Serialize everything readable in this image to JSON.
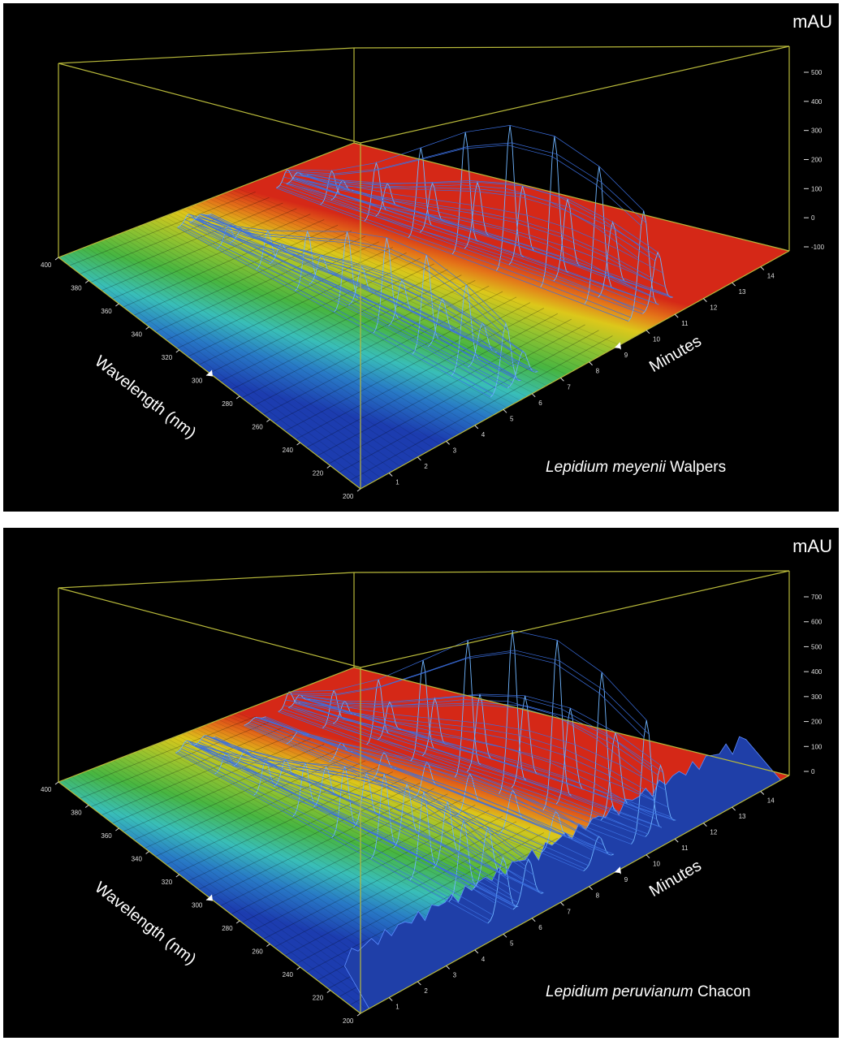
{
  "chart_data": [
    {
      "type": "surface",
      "zlabel": "mAU",
      "xlabel": "Minutes",
      "ylabel": "Wavelength (nm)",
      "species_name": "Lepidium meyenii",
      "species_author": "Walpers",
      "x_ticks": [
        "1",
        "2",
        "3",
        "4",
        "5",
        "6",
        "7",
        "8",
        "9",
        "10",
        "11",
        "12",
        "13",
        "14"
      ],
      "y_ticks": [
        "400",
        "380",
        "360",
        "340",
        "320",
        "300",
        "280",
        "260",
        "240",
        "220",
        "200"
      ],
      "z_ticks": [
        "500",
        "400",
        "300",
        "200",
        "100",
        "0",
        "-100"
      ],
      "zlim": [
        -100,
        500
      ],
      "peaks": [
        {
          "minutes": 5.7,
          "mAU": 320
        },
        {
          "minutes": 6.3,
          "mAU": 140
        },
        {
          "minutes": 10.6,
          "mAU": 500
        },
        {
          "minutes": 11.1,
          "mAU": 260
        }
      ]
    },
    {
      "type": "surface",
      "zlabel": "mAU",
      "xlabel": "Minutes",
      "ylabel": "Wavelength (nm)",
      "species_name": "Lepidium peruvianum",
      "species_author": "Chacon",
      "x_ticks": [
        "1",
        "2",
        "3",
        "4",
        "5",
        "6",
        "7",
        "8",
        "9",
        "10",
        "11",
        "12",
        "13",
        "14"
      ],
      "y_ticks": [
        "400",
        "380",
        "360",
        "340",
        "320",
        "300",
        "280",
        "260",
        "240",
        "220",
        "200"
      ],
      "z_ticks": [
        "700",
        "600",
        "500",
        "400",
        "300",
        "200",
        "100",
        "0"
      ],
      "zlim": [
        0,
        700
      ],
      "peaks": [
        {
          "minutes": 5.6,
          "mAU": 330
        },
        {
          "minutes": 6.5,
          "mAU": 240
        },
        {
          "minutes": 9.0,
          "mAU": 150
        },
        {
          "minutes": 10.7,
          "mAU": 660
        },
        {
          "minutes": 11.2,
          "mAU": 360
        }
      ]
    }
  ]
}
